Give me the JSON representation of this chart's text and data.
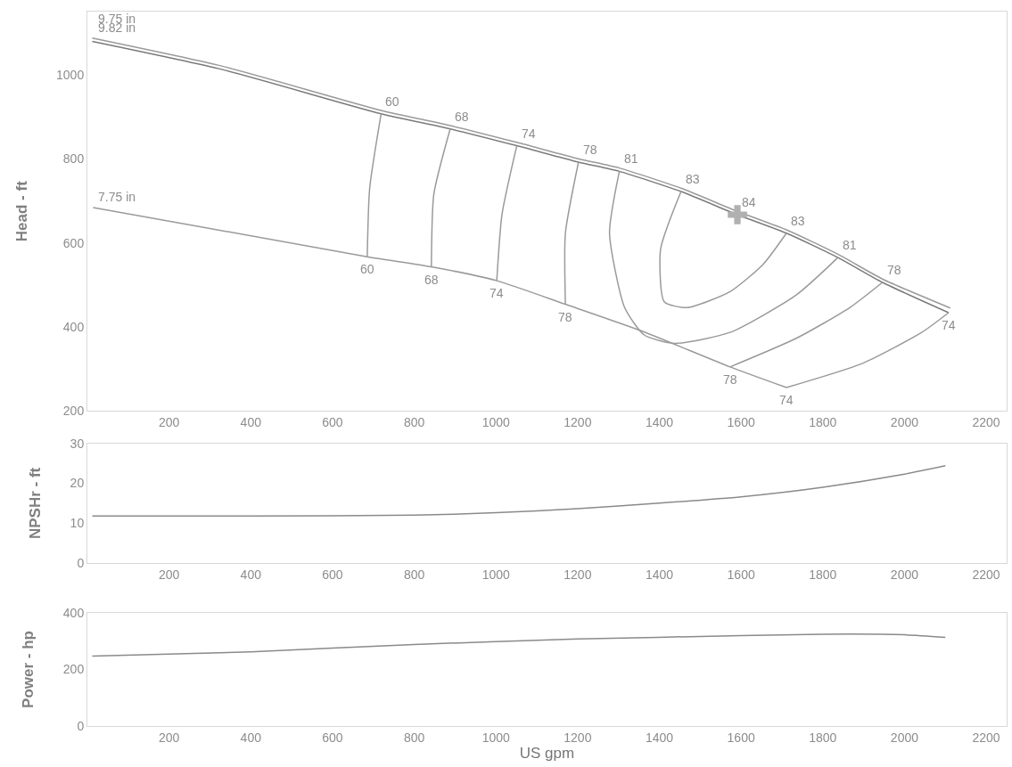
{
  "chart_data": [
    {
      "type": "line",
      "ylabel": "Head - ft",
      "xlim": [
        0,
        2250
      ],
      "xticks": [
        200,
        400,
        600,
        800,
        1000,
        1200,
        1400,
        1600,
        1800,
        2000,
        2200
      ],
      "ylim": [
        200,
        1150
      ],
      "yticks": [
        200,
        400,
        600,
        800,
        1000
      ],
      "grid": false,
      "legend": false,
      "marker": "none",
      "line_style": "solid",
      "series": [
        {
          "name": "9.82 in",
          "color": "#9a9a9a",
          "x": [
            12,
            331,
            719,
            888,
            1051,
            1202,
            1302,
            1453,
            1591,
            1711,
            1837,
            1946,
            2112
          ],
          "values": [
            1087,
            1020,
            915,
            879,
            839,
            800,
            778,
            730,
            675,
            631,
            573,
            514,
            445
          ]
        },
        {
          "name": "9.75 in",
          "color": "#7a7a7a",
          "x": [
            12,
            331,
            719,
            888,
            1051,
            1202,
            1302,
            1453,
            1591,
            1711,
            1837,
            1946,
            2108
          ],
          "values": [
            1079,
            1012,
            907,
            871,
            831,
            792,
            770,
            722,
            667,
            623,
            565,
            506,
            434
          ]
        },
        {
          "name": "7.75 in",
          "color": "#9a9a9a",
          "x": [
            14,
            685,
            842,
            1002,
            1170,
            1355,
            1573,
            1711
          ],
          "values": [
            684,
            567,
            543,
            510,
            454,
            391,
            305,
            256
          ]
        },
        {
          "color": "#9a9a9a",
          "x": [
            719,
            691,
            685
          ],
          "values": [
            907,
            730,
            567
          ]
        },
        {
          "color": "#9a9a9a",
          "x": [
            888,
            848,
            842
          ],
          "values": [
            871,
            716,
            543
          ]
        },
        {
          "color": "#9a9a9a",
          "x": [
            1051,
            1015,
            1002
          ],
          "values": [
            831,
            669,
            510
          ]
        },
        {
          "color": "#9a9a9a",
          "x": [
            1202,
            1170,
            1170
          ],
          "values": [
            792,
            623,
            454
          ]
        },
        {
          "color": "#9a9a9a",
          "x": [
            1302,
            1278,
            1315,
            1363,
            1436,
            1573,
            1735,
            1837
          ],
          "values": [
            770,
            623,
            446,
            381,
            361,
            387,
            476,
            565
          ]
        },
        {
          "color": "#9a9a9a",
          "x": [
            1453,
            1403,
            1412,
            1468,
            1573,
            1654,
            1711
          ],
          "values": [
            722,
            585,
            460,
            446,
            484,
            549,
            623
          ]
        },
        {
          "color": "#9a9a9a",
          "x": [
            1573,
            1735,
            1866,
            1946
          ],
          "values": [
            305,
            373,
            446,
            506
          ]
        },
        {
          "color": "#9a9a9a",
          "x": [
            1711,
            1896,
            2042,
            2108
          ],
          "values": [
            256,
            313,
            387,
            434
          ]
        },
        {
          "type": "scatter",
          "marker": "cross",
          "color": "#b0b0b0",
          "x": [
            1591
          ],
          "values": [
            667
          ]
        }
      ],
      "annotations": [
        {
          "text": "60",
          "x": 719,
          "y": 907
        },
        {
          "text": "68",
          "x": 888,
          "y": 871
        },
        {
          "text": "74",
          "x": 1051,
          "y": 831
        },
        {
          "text": "78",
          "x": 1202,
          "y": 792
        },
        {
          "text": "81",
          "x": 1302,
          "y": 770
        },
        {
          "text": "83",
          "x": 1453,
          "y": 722
        },
        {
          "text": "84",
          "x": 1591,
          "y": 667
        },
        {
          "text": "83",
          "x": 1711,
          "y": 623
        },
        {
          "text": "81",
          "x": 1837,
          "y": 565
        },
        {
          "text": "78",
          "x": 1946,
          "y": 506
        },
        {
          "text": "74",
          "x": 2108,
          "y": 434
        },
        {
          "text": "60",
          "x": 685,
          "y": 567
        },
        {
          "text": "68",
          "x": 842,
          "y": 543
        },
        {
          "text": "74",
          "x": 1002,
          "y": 510
        },
        {
          "text": "78",
          "x": 1170,
          "y": 454
        },
        {
          "text": "78",
          "x": 1573,
          "y": 305
        },
        {
          "text": "74",
          "x": 1711,
          "y": 256
        }
      ]
    },
    {
      "type": "line",
      "ylabel": "NPSHr - ft",
      "xlim": [
        0,
        2250
      ],
      "xticks": [
        200,
        400,
        600,
        800,
        1000,
        1200,
        1400,
        1600,
        1800,
        2000,
        2200
      ],
      "ylim": [
        0,
        30
      ],
      "yticks": [
        0,
        10,
        20,
        30
      ],
      "grid": false,
      "legend": false,
      "marker": "none",
      "line_style": "solid",
      "series": [
        {
          "color": "#8a8a8a",
          "x": [
            12,
            400,
            800,
            1000,
            1200,
            1400,
            1600,
            1800,
            2000,
            2100
          ],
          "values": [
            11.8,
            11.8,
            12.0,
            12.6,
            13.6,
            15.0,
            16.6,
            19.0,
            22.3,
            24.4
          ]
        }
      ]
    },
    {
      "type": "line",
      "ylabel": "Power - hp",
      "xlabel": "US gpm",
      "xlim": [
        0,
        2250
      ],
      "xticks": [
        200,
        400,
        600,
        800,
        1000,
        1200,
        1400,
        1600,
        1800,
        2000,
        2200
      ],
      "ylim": [
        0,
        400
      ],
      "yticks": [
        0,
        200,
        400
      ],
      "grid": false,
      "legend": false,
      "marker": "none",
      "line_style": "solid",
      "series": [
        {
          "color": "#8a8a8a",
          "x": [
            12,
            400,
            800,
            1200,
            1600,
            1800,
            2000,
            2100
          ],
          "values": [
            247,
            262,
            288,
            307,
            319,
            324,
            322,
            313
          ]
        }
      ]
    }
  ]
}
